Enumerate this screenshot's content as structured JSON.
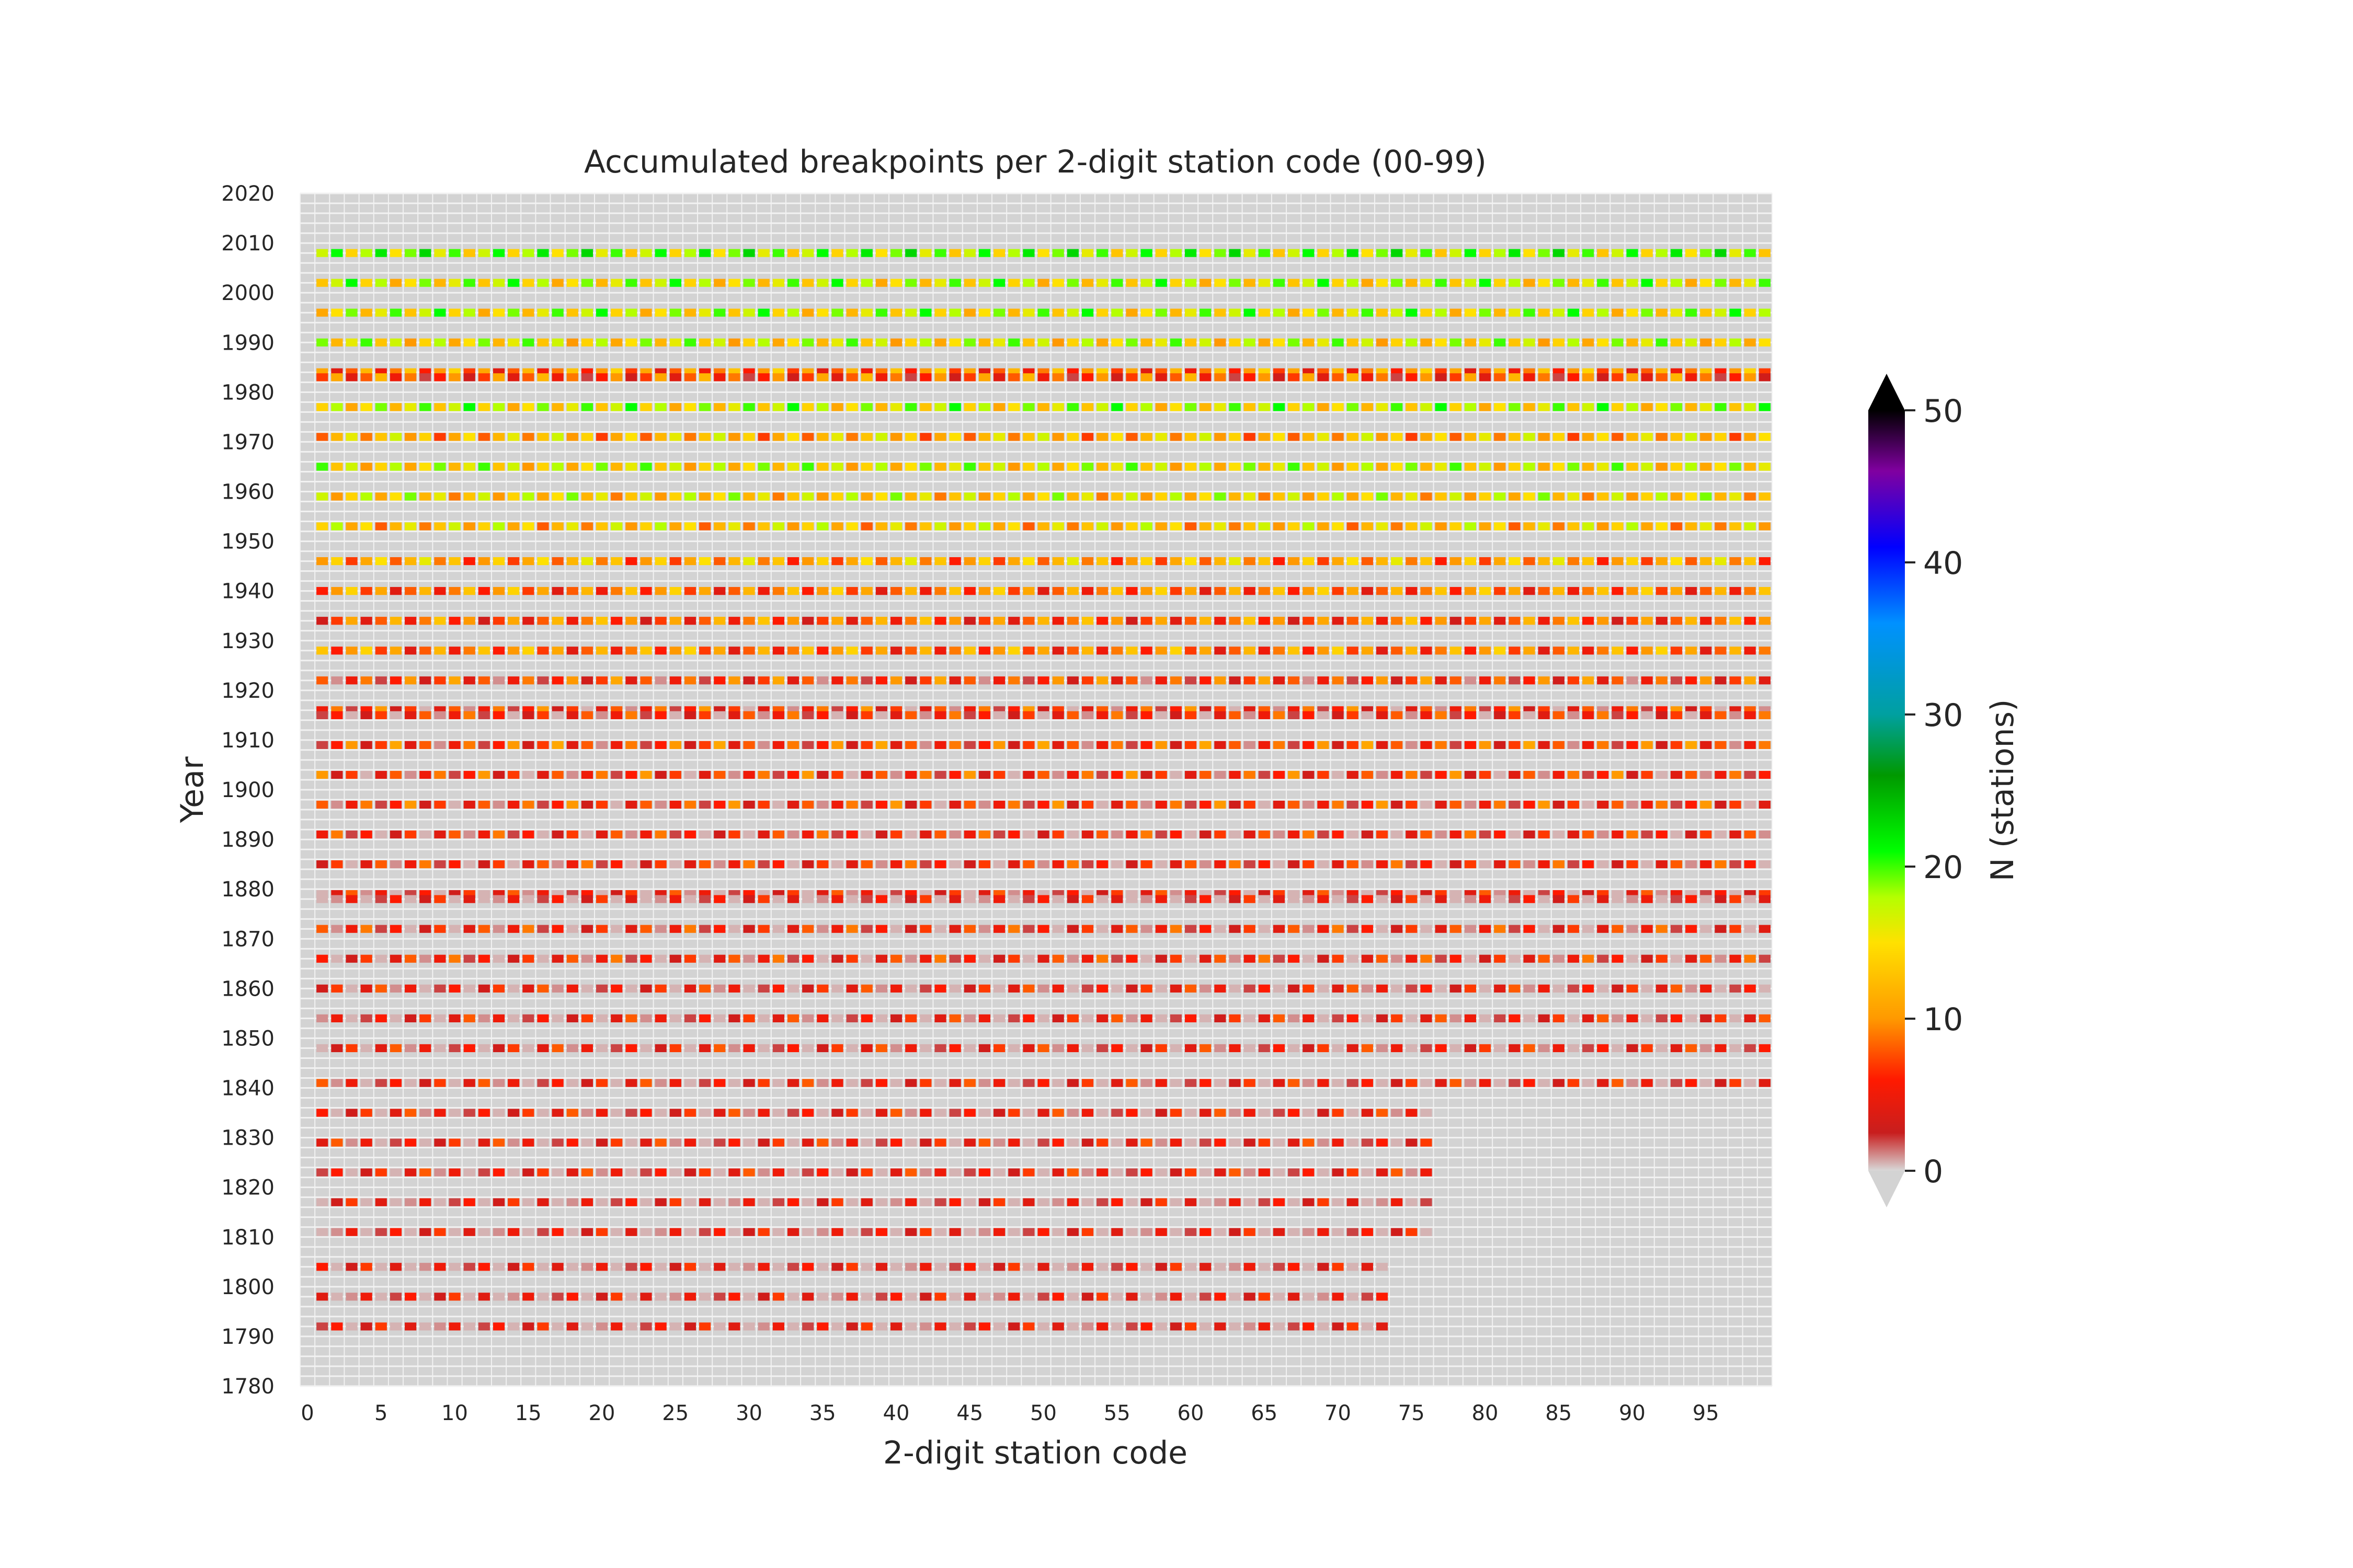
{
  "chart_data": {
    "type": "heatmap",
    "title": "Accumulated breakpoints per 2-digit station code (00-99)",
    "xlabel": "2-digit station code",
    "ylabel": "Year",
    "xlim": [
      0,
      100
    ],
    "ylim": [
      1780,
      2020
    ],
    "x_ticks": [
      0,
      5,
      10,
      15,
      20,
      25,
      30,
      35,
      40,
      45,
      50,
      55,
      60,
      65,
      70,
      75,
      80,
      85,
      90,
      95
    ],
    "y_ticks": [
      1780,
      1790,
      1800,
      1810,
      1820,
      1830,
      1840,
      1850,
      1860,
      1870,
      1880,
      1890,
      1900,
      1910,
      1920,
      1930,
      1940,
      1950,
      1960,
      1970,
      1980,
      1990,
      2000,
      2010,
      2020
    ],
    "row_step_years": 2,
    "background_color": "#d3d3d3",
    "grid": true,
    "grid_color": "#f2f2f2",
    "colorbar": {
      "label": "N (stations)",
      "range": [
        0,
        50
      ],
      "ticks": [
        0,
        10,
        20,
        30,
        40,
        50
      ],
      "extend": "both",
      "under_color": "#d3d3d3",
      "over_color": "#000000",
      "stops": [
        {
          "v": 0,
          "c": "#d8d8d8"
        },
        {
          "v": 2.5,
          "c": "#c81e1e"
        },
        {
          "v": 6,
          "c": "#ff1a00"
        },
        {
          "v": 10,
          "c": "#ff9900"
        },
        {
          "v": 15,
          "c": "#ffe100"
        },
        {
          "v": 18,
          "c": "#b4ff00"
        },
        {
          "v": 21,
          "c": "#00ff00"
        },
        {
          "v": 26,
          "c": "#009900"
        },
        {
          "v": 30,
          "c": "#00a0a0"
        },
        {
          "v": 36,
          "c": "#0091ff"
        },
        {
          "v": 41,
          "c": "#0000ff"
        },
        {
          "v": 46,
          "c": "#8000a0"
        },
        {
          "v": 50,
          "c": "#000000"
        }
      ]
    },
    "rows": [
      {
        "year": 2008,
        "codes_range": [
          1,
          99
        ],
        "level": 18
      },
      {
        "year": 2002,
        "codes_range": [
          1,
          99
        ],
        "level": 16
      },
      {
        "year": 1996,
        "codes_range": [
          1,
          99
        ],
        "level": 16
      },
      {
        "year": 1990,
        "codes_range": [
          1,
          99
        ],
        "level": 15
      },
      {
        "year": 1984,
        "codes_range": [
          1,
          99
        ],
        "level": 9
      },
      {
        "year": 1983,
        "codes_range": [
          1,
          99
        ],
        "level": 7
      },
      {
        "year": 1977,
        "codes_range": [
          1,
          99
        ],
        "level": 16
      },
      {
        "year": 1971,
        "codes_range": [
          1,
          99
        ],
        "level": 12
      },
      {
        "year": 1965,
        "codes_range": [
          1,
          99
        ],
        "level": 15
      },
      {
        "year": 1959,
        "codes_range": [
          1,
          99
        ],
        "level": 14
      },
      {
        "year": 1953,
        "codes_range": [
          1,
          99
        ],
        "level": 13
      },
      {
        "year": 1946,
        "codes_range": [
          1,
          99
        ],
        "level": 11
      },
      {
        "year": 1940,
        "codes_range": [
          1,
          99
        ],
        "level": 9
      },
      {
        "year": 1934,
        "codes_range": [
          1,
          99
        ],
        "level": 8
      },
      {
        "year": 1928,
        "codes_range": [
          1,
          99
        ],
        "level": 9
      },
      {
        "year": 1922,
        "codes_range": [
          1,
          99
        ],
        "level": 6
      },
      {
        "year": 1916,
        "codes_range": [
          1,
          99
        ],
        "level": 5
      },
      {
        "year": 1915,
        "codes_range": [
          1,
          99
        ],
        "level": 4
      },
      {
        "year": 1909,
        "codes_range": [
          1,
          99
        ],
        "level": 6
      },
      {
        "year": 1903,
        "codes_range": [
          1,
          99
        ],
        "level": 5
      },
      {
        "year": 1897,
        "codes_range": [
          1,
          99
        ],
        "level": 5
      },
      {
        "year": 1891,
        "codes_range": [
          1,
          99
        ],
        "level": 4
      },
      {
        "year": 1885,
        "codes_range": [
          1,
          99
        ],
        "level": 4
      },
      {
        "year": 1879,
        "codes_range": [
          1,
          99
        ],
        "level": 3
      },
      {
        "year": 1878,
        "codes_range": [
          1,
          99
        ],
        "level": 2
      },
      {
        "year": 1872,
        "codes_range": [
          1,
          99
        ],
        "level": 4
      },
      {
        "year": 1866,
        "codes_range": [
          1,
          99
        ],
        "level": 4
      },
      {
        "year": 1860,
        "codes_range": [
          1,
          99
        ],
        "level": 3
      },
      {
        "year": 1854,
        "codes_range": [
          1,
          99
        ],
        "level": 3
      },
      {
        "year": 1848,
        "codes_range": [
          1,
          99
        ],
        "level": 3
      },
      {
        "year": 1841,
        "codes_range": [
          1,
          99
        ],
        "level": 3
      },
      {
        "year": 1835,
        "codes_range": [
          1,
          76
        ],
        "level": 3
      },
      {
        "year": 1829,
        "codes_range": [
          1,
          76
        ],
        "level": 3
      },
      {
        "year": 1823,
        "codes_range": [
          1,
          76
        ],
        "level": 3
      },
      {
        "year": 1817,
        "codes_range": [
          1,
          76
        ],
        "level": 2
      },
      {
        "year": 1811,
        "codes_range": [
          1,
          76
        ],
        "level": 2
      },
      {
        "year": 1804,
        "codes_range": [
          1,
          73
        ],
        "level": 2
      },
      {
        "year": 1798,
        "codes_range": [
          1,
          73
        ],
        "level": 2
      },
      {
        "year": 1792,
        "codes_range": [
          1,
          73
        ],
        "level": 2
      }
    ]
  }
}
